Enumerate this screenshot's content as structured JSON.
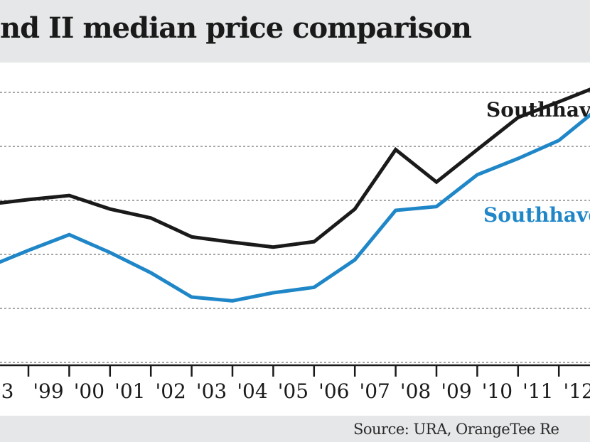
{
  "chart_data": {
    "type": "line",
    "title": "nd II median price comparison",
    "source": "Source: URA, OrangeTee Re",
    "categories": [
      "'98",
      "'99",
      "'00",
      "'01",
      "'02",
      "'03",
      "'04",
      "'05",
      "'06",
      "'07",
      "'08",
      "'09",
      "'10",
      "'11",
      "'12",
      "'13"
    ],
    "tick_labels": [
      "3",
      "'99",
      "'00",
      "'01",
      "'02",
      "'03",
      "'04",
      "'05",
      "'06",
      "'07",
      "'08",
      "'09",
      "'10",
      "'11",
      "'12",
      "2"
    ],
    "ylim": [
      0,
      100
    ],
    "grid": true,
    "series": [
      {
        "name": "Southhaven I",
        "label": "Southhave",
        "color": "#1a1a1a",
        "values": [
          58.5,
          60.3,
          61.8,
          56.8,
          53.5,
          46.5,
          44.5,
          42.7,
          44.7,
          56.8,
          78.8,
          66.8,
          78.8,
          90.7,
          96.5,
          102.5
        ]
      },
      {
        "name": "Southhaven II",
        "label": "Southhave",
        "color": "#1f87c8",
        "values": [
          35.3,
          41.5,
          47.3,
          40.7,
          33.2,
          24.2,
          22.8,
          25.8,
          27.8,
          38.0,
          56.3,
          57.7,
          69.5,
          75.5,
          82.2,
          94.5
        ]
      }
    ]
  }
}
